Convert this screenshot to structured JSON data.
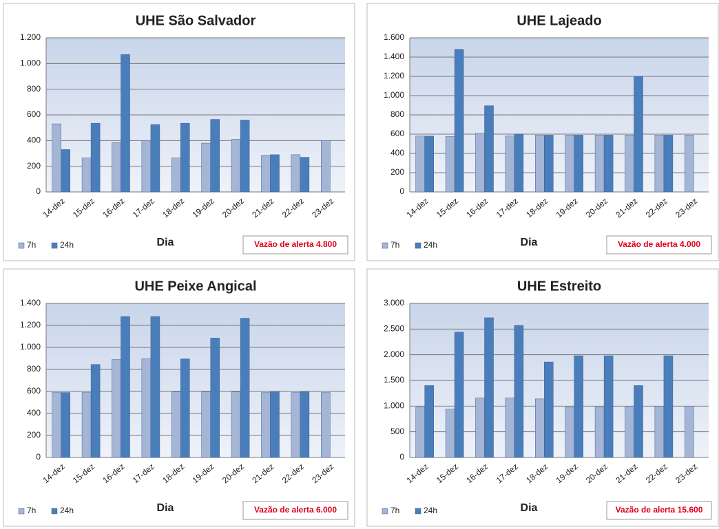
{
  "chart_data": [
    {
      "type": "bar",
      "title": "UHE São Salvador",
      "categories": [
        "14-dez",
        "15-dez",
        "16-dez",
        "17-dez",
        "18-dez",
        "19-dez",
        "20-dez",
        "21-dez",
        "22-dez",
        "23-dez"
      ],
      "series": [
        {
          "name": "7h",
          "color": "#a5b5d6",
          "values": [
            530,
            265,
            385,
            400,
            265,
            380,
            410,
            285,
            290,
            400
          ]
        },
        {
          "name": "24h",
          "color": "#4a7ebb",
          "values": [
            330,
            535,
            1070,
            525,
            535,
            565,
            560,
            290,
            270,
            null
          ]
        }
      ],
      "ylim": [
        0,
        1200
      ],
      "yticks": [
        0,
        200,
        400,
        600,
        800,
        {
          "value": 1000,
          "label": "1.000"
        },
        {
          "value": 1200,
          "label": "1.200"
        }
      ],
      "xlabel": "Dia",
      "annotation": "Vazão de alerta 4.800",
      "grid": true
    },
    {
      "type": "bar",
      "title": "UHE Lajeado",
      "categories": [
        "14-dez",
        "15-dez",
        "16-dez",
        "17-dez",
        "18-dez",
        "19-dez",
        "20-dez",
        "21-dez",
        "22-dez",
        "23-dez"
      ],
      "series": [
        {
          "name": "7h",
          "color": "#a5b5d6",
          "values": [
            580,
            575,
            610,
            580,
            590,
            590,
            590,
            590,
            590,
            590
          ]
        },
        {
          "name": "24h",
          "color": "#4a7ebb",
          "values": [
            580,
            1480,
            895,
            600,
            590,
            590,
            590,
            1200,
            590,
            null
          ]
        }
      ],
      "ylim": [
        0,
        1600
      ],
      "yticks": [
        0,
        200,
        400,
        600,
        800,
        {
          "value": 1000,
          "label": "1.000"
        },
        {
          "value": 1200,
          "label": "1.200"
        },
        {
          "value": 1400,
          "label": "1.400"
        },
        {
          "value": 1600,
          "label": "1.600"
        }
      ],
      "xlabel": "Dia",
      "annotation": "Vazão de alerta 4.000",
      "grid": true
    },
    {
      "type": "bar",
      "title": "UHE Peixe Angical",
      "categories": [
        "14-dez",
        "15-dez",
        "16-dez",
        "17-dez",
        "18-dez",
        "19-dez",
        "20-dez",
        "21-dez",
        "22-dez",
        "23-dez"
      ],
      "series": [
        {
          "name": "7h",
          "color": "#a5b5d6",
          "values": [
            590,
            590,
            890,
            895,
            595,
            595,
            595,
            590,
            590,
            590
          ]
        },
        {
          "name": "24h",
          "color": "#4a7ebb",
          "values": [
            590,
            845,
            1280,
            1280,
            895,
            1085,
            1265,
            595,
            595,
            null
          ]
        }
      ],
      "ylim": [
        0,
        1400
      ],
      "yticks": [
        0,
        200,
        400,
        600,
        800,
        {
          "value": 1000,
          "label": "1.000"
        },
        {
          "value": 1200,
          "label": "1.200"
        },
        {
          "value": 1400,
          "label": "1.400"
        }
      ],
      "xlabel": "Dia",
      "annotation": "Vazão de alerta 6.000",
      "grid": true
    },
    {
      "type": "bar",
      "title": "UHE Estreito",
      "categories": [
        "14-dez",
        "15-dez",
        "16-dez",
        "17-dez",
        "18-dez",
        "19-dez",
        "20-dez",
        "21-dez",
        "22-dez",
        "23-dez"
      ],
      "series": [
        {
          "name": "7h",
          "color": "#a5b5d6",
          "values": [
            980,
            940,
            1160,
            1160,
            1140,
            980,
            980,
            1000,
            1000,
            1000
          ]
        },
        {
          "name": "24h",
          "color": "#4a7ebb",
          "values": [
            1400,
            2440,
            2720,
            2570,
            1860,
            1980,
            1980,
            1400,
            1980,
            null
          ]
        }
      ],
      "ylim": [
        0,
        3000
      ],
      "yticks": [
        0,
        500,
        {
          "value": 1000,
          "label": "1.000"
        },
        {
          "value": 1500,
          "label": "1.500"
        },
        {
          "value": 2000,
          "label": "2.000"
        },
        {
          "value": 2500,
          "label": "2.500"
        },
        {
          "value": 3000,
          "label": "3.000"
        }
      ],
      "xlabel": "Dia",
      "annotation": "Vazão de alerta 15.600",
      "grid": true
    }
  ]
}
